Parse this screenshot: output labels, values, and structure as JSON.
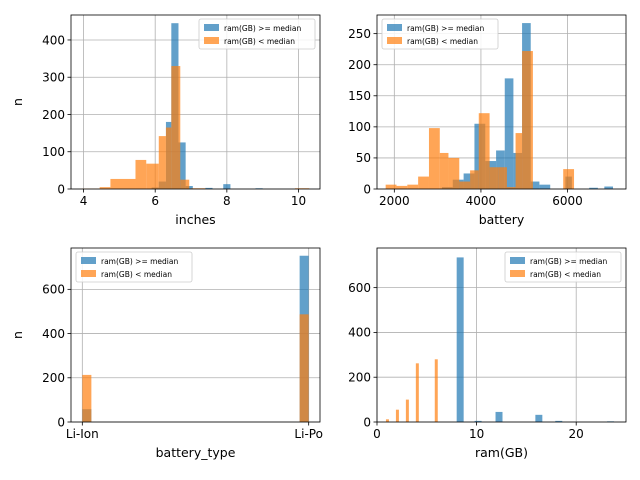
{
  "colors": {
    "high": "#1f77b4",
    "low": "#ff7f0e",
    "grid": "#b0b0b0",
    "axis": "#000000"
  },
  "chart_data": [
    {
      "type": "histogram",
      "xlabel": "inches",
      "ylabel": "n",
      "xlim": [
        3.65,
        10.6
      ],
      "ylim": [
        0,
        467
      ],
      "xticks": [
        4,
        6,
        8,
        10
      ],
      "yticks": [
        0,
        100,
        200,
        300,
        400
      ],
      "grid": true,
      "legend_position": "top-right",
      "series": [
        {
          "name": "ram(GB) >= median",
          "color_key": "high",
          "bins": [
            {
              "x0": 5.9,
              "x1": 6.1,
              "y": 4
            },
            {
              "x0": 6.1,
              "x1": 6.3,
              "y": 20
            },
            {
              "x0": 6.3,
              "x1": 6.45,
              "y": 180
            },
            {
              "x0": 6.45,
              "x1": 6.65,
              "y": 445
            },
            {
              "x0": 6.65,
              "x1": 6.85,
              "y": 125
            },
            {
              "x0": 6.85,
              "x1": 7.05,
              "y": 8
            },
            {
              "x0": 7.4,
              "x1": 7.6,
              "y": 3
            },
            {
              "x0": 7.9,
              "x1": 8.1,
              "y": 13
            },
            {
              "x0": 8.8,
              "x1": 9.0,
              "y": 2
            },
            {
              "x0": 10.1,
              "x1": 10.3,
              "y": 1
            }
          ]
        },
        {
          "name": "ram(GB) < median",
          "color_key": "low",
          "bins": [
            {
              "x0": 3.95,
              "x1": 4.45,
              "y": 1
            },
            {
              "x0": 4.45,
              "x1": 4.75,
              "y": 5
            },
            {
              "x0": 4.75,
              "x1": 5.45,
              "y": 27
            },
            {
              "x0": 5.45,
              "x1": 5.75,
              "y": 78
            },
            {
              "x0": 5.75,
              "x1": 6.1,
              "y": 68
            },
            {
              "x0": 6.1,
              "x1": 6.3,
              "y": 142
            },
            {
              "x0": 6.3,
              "x1": 6.45,
              "y": 165
            },
            {
              "x0": 6.45,
              "x1": 6.7,
              "y": 330
            },
            {
              "x0": 6.7,
              "x1": 6.95,
              "y": 25
            },
            {
              "x0": 7.0,
              "x1": 7.4,
              "y": 2
            },
            {
              "x0": 9.9,
              "x1": 10.3,
              "y": 2
            }
          ]
        }
      ]
    },
    {
      "type": "histogram",
      "xlabel": "battery",
      "ylabel": "",
      "xlim": [
        1600,
        7350
      ],
      "ylim": [
        0,
        280
      ],
      "xticks": [
        2000,
        4000,
        6000
      ],
      "yticks": [
        0,
        50,
        100,
        150,
        200,
        250
      ],
      "grid": true,
      "legend_position": "top-left",
      "series": [
        {
          "name": "ram(GB) >= median",
          "color_key": "high",
          "bins": [
            {
              "x0": 3100,
              "x1": 3350,
              "y": 3
            },
            {
              "x0": 3350,
              "x1": 3600,
              "y": 15
            },
            {
              "x0": 3600,
              "x1": 3850,
              "y": 25
            },
            {
              "x0": 3850,
              "x1": 4100,
              "y": 105
            },
            {
              "x0": 4100,
              "x1": 4350,
              "y": 45
            },
            {
              "x0": 4350,
              "x1": 4550,
              "y": 62
            },
            {
              "x0": 4550,
              "x1": 4750,
              "y": 178
            },
            {
              "x0": 4750,
              "x1": 4950,
              "y": 58
            },
            {
              "x0": 4950,
              "x1": 5150,
              "y": 267
            },
            {
              "x0": 5150,
              "x1": 5350,
              "y": 12
            },
            {
              "x0": 5350,
              "x1": 5600,
              "y": 7
            },
            {
              "x0": 5950,
              "x1": 6100,
              "y": 20
            },
            {
              "x0": 6500,
              "x1": 6700,
              "y": 2
            },
            {
              "x0": 6850,
              "x1": 7050,
              "y": 4
            }
          ]
        },
        {
          "name": "ram(GB) < median",
          "color_key": "low",
          "bins": [
            {
              "x0": 1800,
              "x1": 2050,
              "y": 7
            },
            {
              "x0": 2050,
              "x1": 2300,
              "y": 5
            },
            {
              "x0": 2300,
              "x1": 2550,
              "y": 7
            },
            {
              "x0": 2550,
              "x1": 2800,
              "y": 20
            },
            {
              "x0": 2800,
              "x1": 3050,
              "y": 98
            },
            {
              "x0": 3050,
              "x1": 3250,
              "y": 58
            },
            {
              "x0": 3250,
              "x1": 3500,
              "y": 50
            },
            {
              "x0": 3500,
              "x1": 3750,
              "y": 12
            },
            {
              "x0": 3750,
              "x1": 3950,
              "y": 30
            },
            {
              "x0": 3950,
              "x1": 4200,
              "y": 122
            },
            {
              "x0": 4200,
              "x1": 4400,
              "y": 35
            },
            {
              "x0": 4400,
              "x1": 4600,
              "y": 35
            },
            {
              "x0": 4600,
              "x1": 4800,
              "y": 3
            },
            {
              "x0": 4800,
              "x1": 4950,
              "y": 90
            },
            {
              "x0": 4950,
              "x1": 5200,
              "y": 222
            },
            {
              "x0": 5900,
              "x1": 6150,
              "y": 32
            }
          ]
        }
      ]
    },
    {
      "type": "histogram",
      "xlabel": "battery_type",
      "ylabel": "n",
      "xlim": [
        -0.05,
        1.05
      ],
      "ylim": [
        0,
        787
      ],
      "xticks": [
        0,
        1
      ],
      "xticklabels": [
        "Li-Ion",
        "Li-Po"
      ],
      "yticks": [
        0,
        200,
        400,
        600
      ],
      "grid": true,
      "legend_position": "top-left",
      "series": [
        {
          "name": "ram(GB) >= median",
          "color_key": "high",
          "bins": [
            {
              "x0": 0.0,
              "x1": 0.04,
              "y": 58
            },
            {
              "x0": 0.96,
              "x1": 1.0,
              "y": 752
            }
          ]
        },
        {
          "name": "ram(GB) < median",
          "color_key": "low",
          "bins": [
            {
              "x0": 0.0,
              "x1": 0.04,
              "y": 213
            },
            {
              "x0": 0.96,
              "x1": 1.0,
              "y": 487
            }
          ]
        }
      ]
    },
    {
      "type": "histogram",
      "xlabel": "ram(GB)",
      "ylabel": "",
      "xlim": [
        0,
        25
      ],
      "ylim": [
        0,
        777
      ],
      "xticks": [
        0,
        10,
        20
      ],
      "yticks": [
        0,
        200,
        400,
        600
      ],
      "grid": true,
      "legend_position": "top-right",
      "series": [
        {
          "name": "ram(GB) >= median",
          "color_key": "high",
          "bins": [
            {
              "x0": 8.0,
              "x1": 8.7,
              "y": 735
            },
            {
              "x0": 9.8,
              "x1": 10.5,
              "y": 5
            },
            {
              "x0": 11.9,
              "x1": 12.6,
              "y": 45
            },
            {
              "x0": 15.9,
              "x1": 16.6,
              "y": 32
            },
            {
              "x0": 17.9,
              "x1": 18.6,
              "y": 5
            },
            {
              "x0": 23.1,
              "x1": 23.8,
              "y": 3
            }
          ]
        },
        {
          "name": "ram(GB) < median",
          "color_key": "low",
          "bins": [
            {
              "x0": 0.9,
              "x1": 1.2,
              "y": 12
            },
            {
              "x0": 1.9,
              "x1": 2.2,
              "y": 55
            },
            {
              "x0": 2.9,
              "x1": 3.2,
              "y": 100
            },
            {
              "x0": 3.9,
              "x1": 4.2,
              "y": 262
            },
            {
              "x0": 5.8,
              "x1": 6.1,
              "y": 280
            }
          ]
        }
      ]
    }
  ]
}
